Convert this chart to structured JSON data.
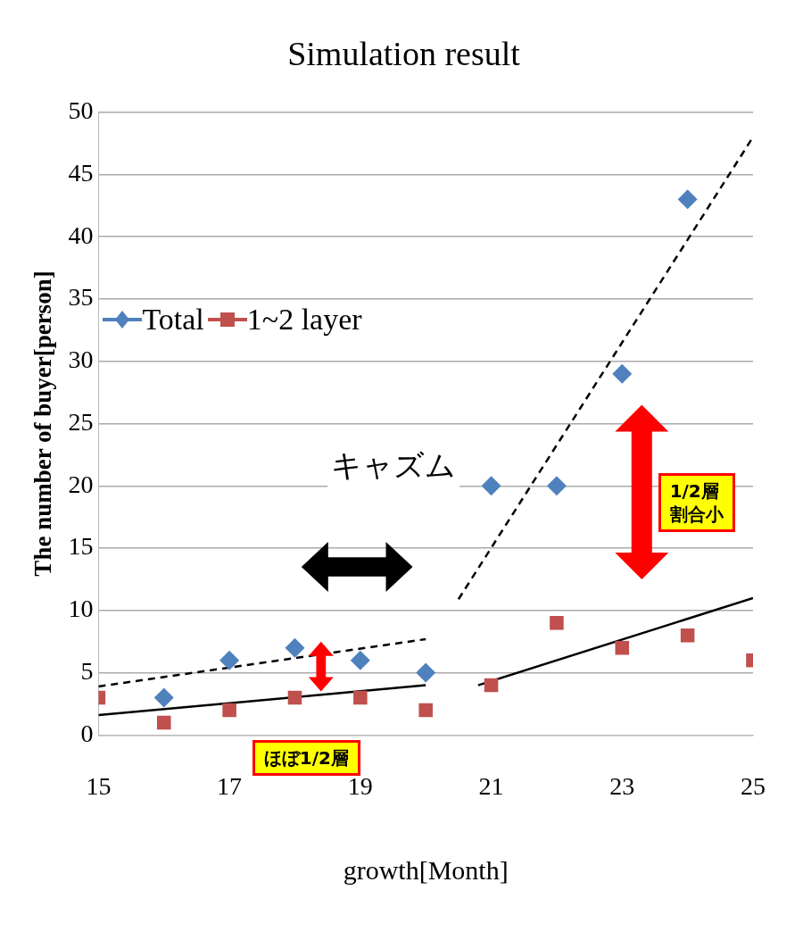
{
  "chart_data": {
    "type": "scatter",
    "title": "Simulation result",
    "xlabel": "growth[Month]",
    "ylabel": "The number of buyer[person]",
    "x": [
      15,
      16,
      17,
      18,
      19,
      20,
      21,
      22,
      23,
      24,
      25
    ],
    "series": [
      {
        "name": "Total",
        "marker": "diamond",
        "color": "#4f81bd",
        "values": [
          null,
          3,
          6,
          7,
          6,
          5,
          20,
          20,
          29,
          43,
          null
        ]
      },
      {
        "name": "1~2 layer",
        "marker": "square",
        "color": "#c0504d",
        "values": [
          3,
          1,
          2,
          3,
          3,
          2,
          4,
          9,
          7,
          8,
          6
        ]
      },
      {
        "type": "line",
        "color": "#000000",
        "line_style": "dashed",
        "marker": "none",
        "x": [
          15,
          20
        ],
        "values": [
          3.9,
          7.7
        ]
      },
      {
        "type": "line",
        "color": "#000000",
        "line_style": "dashed",
        "marker": "none",
        "x": [
          20.5,
          25
        ],
        "values": [
          10.9,
          48
        ]
      },
      {
        "type": "line",
        "color": "#000000",
        "line_style": "solid",
        "marker": "none",
        "x": [
          15,
          20
        ],
        "values": [
          1.6,
          4
        ]
      },
      {
        "type": "line",
        "color": "#000000",
        "line_style": "solid",
        "marker": "none",
        "x": [
          20.8,
          25
        ],
        "values": [
          4,
          11
        ]
      }
    ],
    "xlim": [
      15,
      25
    ],
    "xticks": [
      15,
      17,
      19,
      21,
      23,
      25
    ],
    "ylim": [
      0,
      50
    ],
    "yticks": [
      0,
      5,
      10,
      15,
      20,
      25,
      30,
      35,
      40,
      45,
      50
    ],
    "grid": "y",
    "legend": "left",
    "annotations": [
      "キャズム",
      "1/2層",
      "割合小",
      "ほぼ1/2層"
    ]
  }
}
